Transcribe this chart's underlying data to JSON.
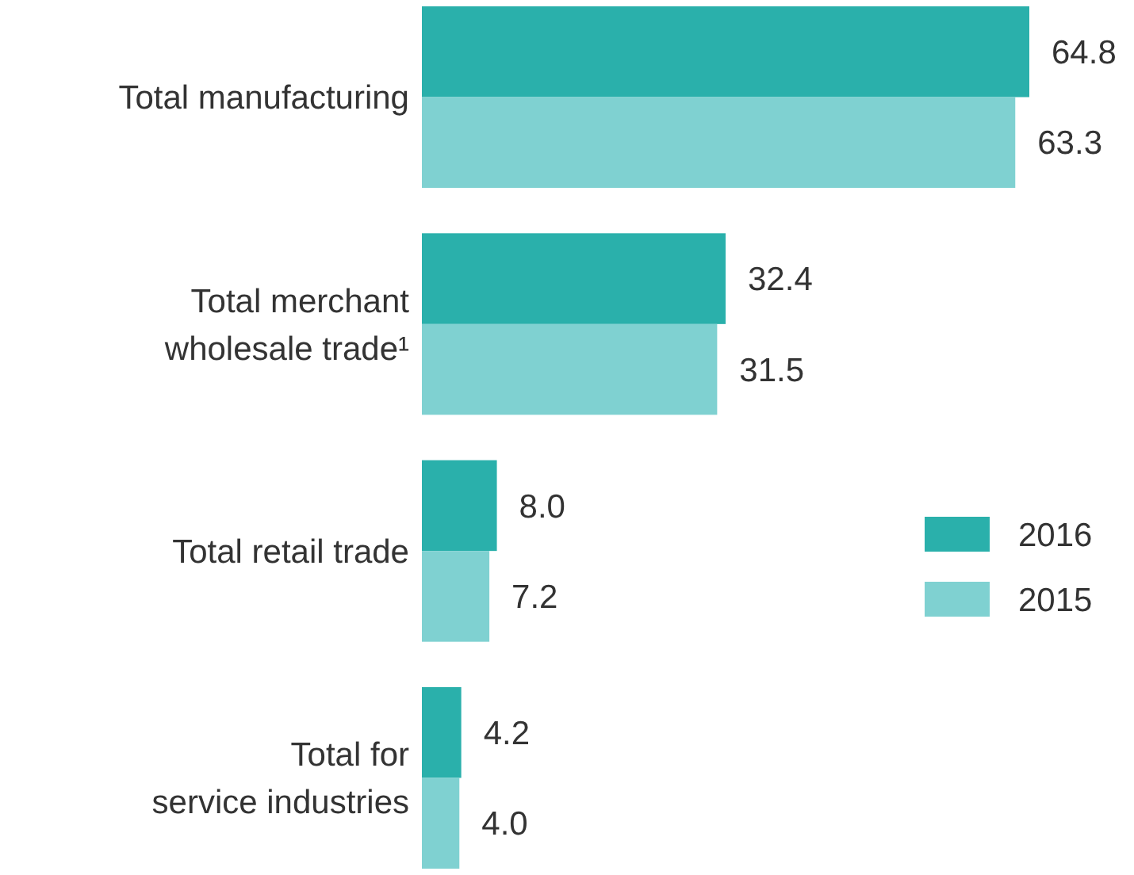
{
  "chart_data": {
    "type": "bar",
    "orientation": "horizontal",
    "categories": [
      "Total manufacturing",
      "Total merchant wholesale trade¹",
      "Total retail trade",
      "Total for service industries"
    ],
    "series": [
      {
        "name": "2016",
        "color": "#2ab0ab",
        "values": [
          64.8,
          32.4,
          8.0,
          4.2
        ],
        "value_labels": [
          "64.8",
          "32.4",
          "8.0",
          "4.2"
        ]
      },
      {
        "name": "2015",
        "color": "#7fd1d1",
        "values": [
          63.3,
          31.5,
          7.2,
          4.0
        ],
        "value_labels": [
          "63.3",
          "31.5",
          "7.2",
          "4.0"
        ]
      }
    ],
    "legend": "right"
  }
}
